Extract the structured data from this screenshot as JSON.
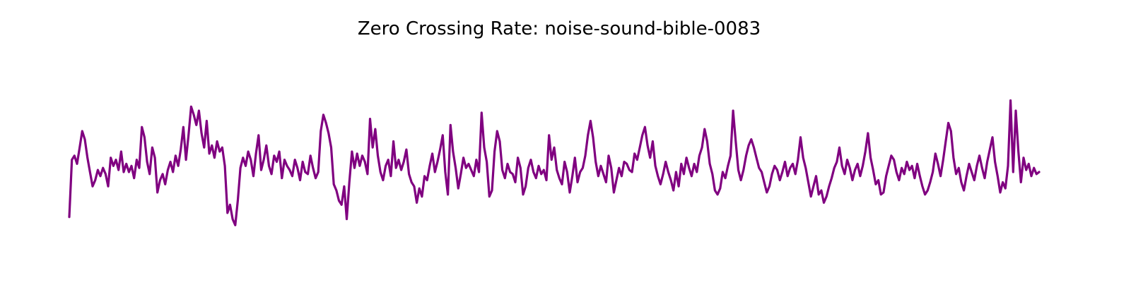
{
  "chart_data": {
    "type": "line",
    "title": "Zero Crossing Rate: noise-sound-bible-0083",
    "xlabel": "",
    "ylabel": "",
    "axes_visible": false,
    "grid": false,
    "x_start": 0,
    "x_end": 1,
    "ylim": [
      0,
      1
    ],
    "series": [
      {
        "color": "#800080",
        "values": [
          0.18,
          0.46,
          0.48,
          0.44,
          0.52,
          0.6,
          0.56,
          0.47,
          0.4,
          0.33,
          0.36,
          0.41,
          0.38,
          0.42,
          0.39,
          0.33,
          0.47,
          0.43,
          0.46,
          0.41,
          0.5,
          0.4,
          0.44,
          0.4,
          0.43,
          0.37,
          0.46,
          0.42,
          0.62,
          0.57,
          0.45,
          0.39,
          0.52,
          0.47,
          0.3,
          0.36,
          0.39,
          0.34,
          0.41,
          0.45,
          0.4,
          0.48,
          0.43,
          0.51,
          0.62,
          0.46,
          0.58,
          0.72,
          0.68,
          0.63,
          0.7,
          0.59,
          0.52,
          0.65,
          0.49,
          0.53,
          0.47,
          0.55,
          0.5,
          0.52,
          0.43,
          0.2,
          0.24,
          0.17,
          0.14,
          0.26,
          0.42,
          0.47,
          0.43,
          0.5,
          0.46,
          0.38,
          0.49,
          0.58,
          0.41,
          0.46,
          0.53,
          0.43,
          0.39,
          0.48,
          0.45,
          0.5,
          0.37,
          0.46,
          0.43,
          0.41,
          0.38,
          0.46,
          0.42,
          0.36,
          0.45,
          0.4,
          0.39,
          0.48,
          0.42,
          0.37,
          0.4,
          0.6,
          0.68,
          0.64,
          0.59,
          0.52,
          0.34,
          0.31,
          0.26,
          0.24,
          0.33,
          0.17,
          0.35,
          0.5,
          0.42,
          0.49,
          0.43,
          0.48,
          0.45,
          0.39,
          0.66,
          0.52,
          0.61,
          0.48,
          0.4,
          0.36,
          0.43,
          0.46,
          0.38,
          0.55,
          0.42,
          0.46,
          0.41,
          0.45,
          0.51,
          0.39,
          0.35,
          0.33,
          0.25,
          0.32,
          0.28,
          0.38,
          0.36,
          0.43,
          0.49,
          0.4,
          0.45,
          0.51,
          0.58,
          0.4,
          0.29,
          0.63,
          0.5,
          0.42,
          0.32,
          0.39,
          0.47,
          0.42,
          0.44,
          0.41,
          0.38,
          0.46,
          0.4,
          0.69,
          0.52,
          0.45,
          0.28,
          0.31,
          0.5,
          0.6,
          0.55,
          0.41,
          0.37,
          0.44,
          0.4,
          0.39,
          0.35,
          0.47,
          0.42,
          0.29,
          0.33,
          0.42,
          0.46,
          0.4,
          0.37,
          0.43,
          0.39,
          0.41,
          0.36,
          0.58,
          0.46,
          0.52,
          0.41,
          0.37,
          0.34,
          0.45,
          0.4,
          0.3,
          0.38,
          0.47,
          0.35,
          0.4,
          0.42,
          0.48,
          0.58,
          0.65,
          0.57,
          0.45,
          0.38,
          0.43,
          0.39,
          0.35,
          0.48,
          0.42,
          0.3,
          0.36,
          0.42,
          0.38,
          0.45,
          0.44,
          0.41,
          0.4,
          0.49,
          0.46,
          0.52,
          0.58,
          0.62,
          0.53,
          0.47,
          0.55,
          0.43,
          0.38,
          0.34,
          0.39,
          0.45,
          0.4,
          0.36,
          0.31,
          0.4,
          0.33,
          0.44,
          0.39,
          0.47,
          0.42,
          0.38,
          0.44,
          0.4,
          0.48,
          0.52,
          0.61,
          0.55,
          0.44,
          0.39,
          0.31,
          0.29,
          0.32,
          0.4,
          0.37,
          0.43,
          0.48,
          0.7,
          0.55,
          0.41,
          0.36,
          0.41,
          0.48,
          0.53,
          0.56,
          0.52,
          0.47,
          0.42,
          0.4,
          0.35,
          0.3,
          0.33,
          0.39,
          0.43,
          0.41,
          0.36,
          0.4,
          0.45,
          0.38,
          0.42,
          0.44,
          0.39,
          0.46,
          0.57,
          0.47,
          0.42,
          0.35,
          0.28,
          0.33,
          0.38,
          0.29,
          0.31,
          0.25,
          0.28,
          0.33,
          0.37,
          0.42,
          0.45,
          0.52,
          0.43,
          0.39,
          0.46,
          0.42,
          0.36,
          0.41,
          0.44,
          0.38,
          0.43,
          0.5,
          0.59,
          0.47,
          0.41,
          0.34,
          0.36,
          0.29,
          0.3,
          0.38,
          0.43,
          0.48,
          0.46,
          0.4,
          0.36,
          0.42,
          0.39,
          0.45,
          0.41,
          0.43,
          0.37,
          0.44,
          0.38,
          0.33,
          0.29,
          0.31,
          0.35,
          0.4,
          0.49,
          0.44,
          0.38,
          0.46,
          0.55,
          0.64,
          0.6,
          0.47,
          0.39,
          0.42,
          0.35,
          0.31,
          0.38,
          0.44,
          0.4,
          0.36,
          0.43,
          0.48,
          0.42,
          0.37,
          0.45,
          0.51,
          0.57,
          0.45,
          0.38,
          0.3,
          0.35,
          0.32,
          0.43,
          0.75,
          0.4,
          0.7,
          0.5,
          0.35,
          0.47,
          0.41,
          0.44,
          0.38,
          0.42,
          0.39,
          0.4
        ]
      }
    ]
  }
}
